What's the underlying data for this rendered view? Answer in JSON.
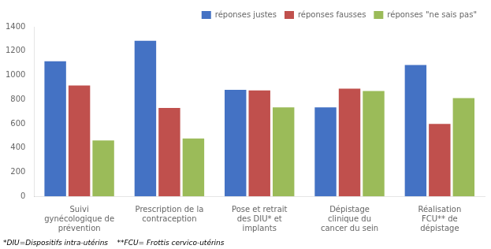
{
  "chart_data": {
    "type": "bar",
    "categories": [
      "Suivi\ngynécologique de\nprévention",
      "Prescription de la\ncontraception",
      "Pose et retrait\ndes DIU* et\nimplants",
      "Dépistage\nclinique du\ncancer du sein",
      "Réalisation\nFCU** de\ndépistage"
    ],
    "series": [
      {
        "name": "réponses justes",
        "color": "#4472C4",
        "values": [
          1115,
          1285,
          880,
          735,
          1085
        ]
      },
      {
        "name": "réponses fausses",
        "color": "#C0504D",
        "values": [
          915,
          730,
          875,
          890,
          598
        ]
      },
      {
        "name": "réponses \"ne sais pas\"",
        "color": "#9BBB59",
        "values": [
          462,
          478,
          735,
          870,
          812
        ]
      }
    ],
    "ylim": [
      0,
      1400
    ],
    "yticks": [
      0,
      200,
      400,
      600,
      800,
      1000,
      1200,
      1400
    ],
    "grid": false,
    "legend": "upper right",
    "annotations": [
      "*DIU=Dispositifs intra-utérins    **FCU= Frottis cervico-utérins"
    ]
  }
}
